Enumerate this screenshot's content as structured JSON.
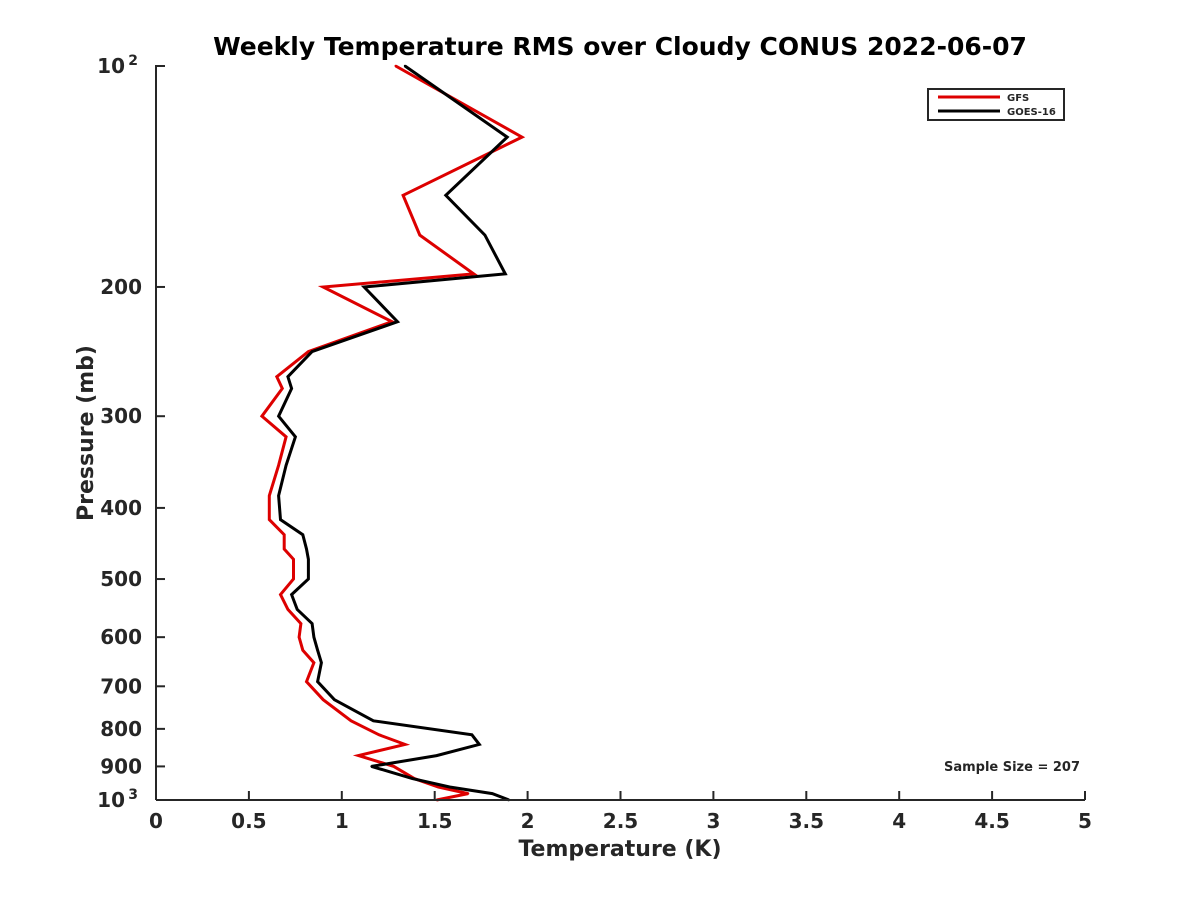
{
  "chart_data": {
    "type": "line",
    "title": "Weekly Temperature RMS over Cloudy CONUS 2022-06-07",
    "xlabel": "Temperature (K)",
    "ylabel": "Pressure (mb)",
    "xlim": [
      0,
      5
    ],
    "ylim": [
      100,
      1000
    ],
    "y_scale": "log",
    "y_reversed": true,
    "grid": false,
    "legend_position": "top-right",
    "x_ticks": [
      {
        "value": 0,
        "label": "0"
      },
      {
        "value": 0.5,
        "label": "0.5"
      },
      {
        "value": 1,
        "label": "1"
      },
      {
        "value": 1.5,
        "label": "1.5"
      },
      {
        "value": 2,
        "label": "2"
      },
      {
        "value": 2.5,
        "label": "2.5"
      },
      {
        "value": 3,
        "label": "3"
      },
      {
        "value": 3.5,
        "label": "3.5"
      },
      {
        "value": 4,
        "label": "4"
      },
      {
        "value": 4.5,
        "label": "4.5"
      },
      {
        "value": 5,
        "label": "5"
      }
    ],
    "y_ticks": [
      {
        "value": 100,
        "label": "10",
        "sup": "2"
      },
      {
        "value": 200,
        "label": "200"
      },
      {
        "value": 300,
        "label": "300"
      },
      {
        "value": 400,
        "label": "400"
      },
      {
        "value": 500,
        "label": "500"
      },
      {
        "value": 600,
        "label": "600"
      },
      {
        "value": 700,
        "label": "700"
      },
      {
        "value": 800,
        "label": "800"
      },
      {
        "value": 900,
        "label": "900"
      },
      {
        "value": 1000,
        "label": "10",
        "sup": "3"
      }
    ],
    "annotation": "Sample Size = 207",
    "series": [
      {
        "name": "GFS",
        "color": "#dd0000",
        "points": [
          [
            1.29,
            100
          ],
          [
            1.97,
            125
          ],
          [
            1.33,
            150
          ],
          [
            1.42,
            170
          ],
          [
            1.71,
            192
          ],
          [
            0.9,
            200
          ],
          [
            1.27,
            223
          ],
          [
            0.82,
            245
          ],
          [
            0.65,
            265
          ],
          [
            0.68,
            275
          ],
          [
            0.57,
            300
          ],
          [
            0.7,
            320
          ],
          [
            0.66,
            350
          ],
          [
            0.61,
            385
          ],
          [
            0.61,
            415
          ],
          [
            0.69,
            435
          ],
          [
            0.69,
            455
          ],
          [
            0.74,
            470
          ],
          [
            0.74,
            500
          ],
          [
            0.67,
            525
          ],
          [
            0.71,
            550
          ],
          [
            0.78,
            575
          ],
          [
            0.77,
            600
          ],
          [
            0.79,
            625
          ],
          [
            0.85,
            650
          ],
          [
            0.81,
            690
          ],
          [
            0.9,
            730
          ],
          [
            1.05,
            780
          ],
          [
            1.2,
            815
          ],
          [
            1.34,
            840
          ],
          [
            1.09,
            870
          ],
          [
            1.28,
            900
          ],
          [
            1.39,
            935
          ],
          [
            1.52,
            960
          ],
          [
            1.68,
            980
          ],
          [
            1.51,
            1000
          ]
        ]
      },
      {
        "name": "GOES-16",
        "color": "#000000",
        "points": [
          [
            1.34,
            100
          ],
          [
            1.89,
            125
          ],
          [
            1.56,
            150
          ],
          [
            1.77,
            170
          ],
          [
            1.88,
            192
          ],
          [
            1.12,
            200
          ],
          [
            1.3,
            223
          ],
          [
            0.84,
            245
          ],
          [
            0.71,
            265
          ],
          [
            0.73,
            275
          ],
          [
            0.66,
            300
          ],
          [
            0.75,
            320
          ],
          [
            0.7,
            350
          ],
          [
            0.66,
            385
          ],
          [
            0.67,
            415
          ],
          [
            0.79,
            435
          ],
          [
            0.81,
            455
          ],
          [
            0.82,
            470
          ],
          [
            0.82,
            500
          ],
          [
            0.73,
            525
          ],
          [
            0.76,
            550
          ],
          [
            0.84,
            575
          ],
          [
            0.85,
            600
          ],
          [
            0.87,
            625
          ],
          [
            0.89,
            650
          ],
          [
            0.87,
            690
          ],
          [
            0.96,
            730
          ],
          [
            1.17,
            780
          ],
          [
            1.7,
            815
          ],
          [
            1.74,
            840
          ],
          [
            1.51,
            870
          ],
          [
            1.16,
            900
          ],
          [
            1.38,
            935
          ],
          [
            1.58,
            960
          ],
          [
            1.81,
            980
          ],
          [
            1.9,
            1000
          ]
        ]
      }
    ]
  }
}
